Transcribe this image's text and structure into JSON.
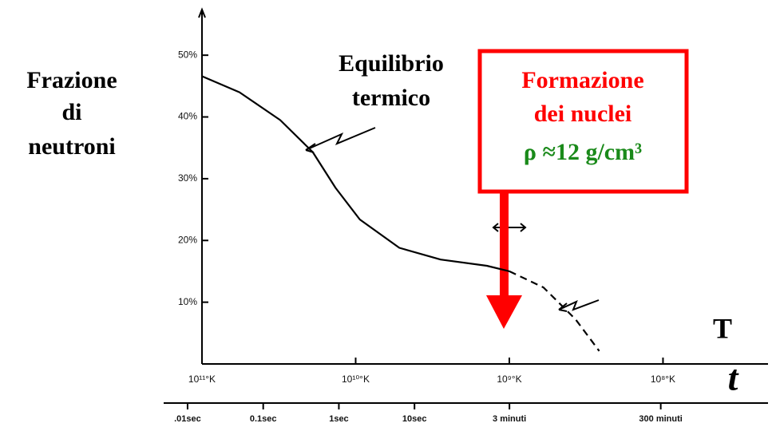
{
  "chart_data": {
    "type": "line",
    "ylabel": [
      "Frazione",
      "di",
      "neutroni"
    ],
    "xlabel": "T",
    "x2label": "t",
    "annotations": {
      "curve": [
        "Equilibrio",
        "termico"
      ],
      "box": [
        "Formazione",
        "dei nuclei",
        "ρ ≈12 g/cm³"
      ]
    },
    "xscale": "log",
    "xlim": [
      100000000000.0,
      20000000.0
    ],
    "xticks": [
      {
        "value": 100000000000.0,
        "label": "10¹¹°K"
      },
      {
        "value": 10000000000.0,
        "label": "10¹⁰°K"
      },
      {
        "value": 1000000000.0,
        "label": "10⁹°K"
      },
      {
        "value": 100000000.0,
        "label": "10⁸°K"
      }
    ],
    "x2scale": "log",
    "x2lim": [
      0.00483,
      507000
    ],
    "x2ticks": [
      {
        "value": 0.01,
        "label": ".01sec"
      },
      {
        "value": 0.1,
        "label": "0.1sec"
      },
      {
        "value": 1,
        "label": "1sec"
      },
      {
        "value": 10,
        "label": "10sec"
      },
      {
        "value": 180,
        "label": "3 minuti"
      },
      {
        "value": 18000,
        "label": "300 minuti"
      }
    ],
    "ylim": [
      0,
      57
    ],
    "yticks": [
      {
        "value": 10,
        "label": "10%"
      },
      {
        "value": 20,
        "label": "20%"
      },
      {
        "value": 30,
        "label": "30%"
      },
      {
        "value": 40,
        "label": "40%"
      },
      {
        "value": 50,
        "label": "50%"
      }
    ],
    "series": [
      {
        "color": "#000000",
        "dash": false,
        "x": [
          100000000000.0,
          57000000000.0,
          31000000000.0,
          19000000000.0,
          13500000000.0,
          9400000000.0,
          5200000000.0,
          2800000000.0,
          1400000000.0,
          1000000000.0
        ],
        "values": [
          46.6,
          44.0,
          39.5,
          34.3,
          28.5,
          23.4,
          18.8,
          16.9,
          15.9,
          15.0
        ]
      },
      {
        "color": "#000000",
        "dash": true,
        "x": [
          1000000000.0,
          600000000.0,
          370000000.0,
          260000000.0
        ],
        "values": [
          15.0,
          12.4,
          7.2,
          2.1
        ]
      }
    ]
  }
}
